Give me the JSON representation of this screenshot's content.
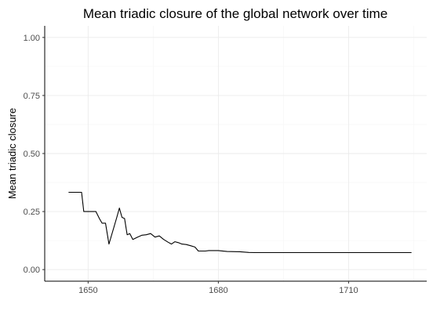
{
  "chart_data": {
    "type": "line",
    "title": "Mean triadic closure of the global network over time",
    "xlabel": "",
    "ylabel": "Mean triadic closure",
    "xlim": [
      1640,
      1728
    ],
    "ylim": [
      -0.05,
      1.05
    ],
    "x_ticks": [
      1650,
      1680,
      1710
    ],
    "y_ticks": [
      0.0,
      0.25,
      0.5,
      0.75,
      1.0
    ],
    "y_tick_labels": [
      "0.00",
      "0.25",
      "0.50",
      "0.75",
      "1.00"
    ],
    "grid": true,
    "legend": "none",
    "series": [
      {
        "color": "#000000",
        "points": [
          [
            1645.5,
            0.333
          ],
          [
            1648.5,
            0.333
          ],
          [
            1649.0,
            0.25
          ],
          [
            1651.0,
            0.25
          ],
          [
            1651.8,
            0.25
          ],
          [
            1652.6,
            0.22
          ],
          [
            1653.2,
            0.2
          ],
          [
            1654.0,
            0.2
          ],
          [
            1654.8,
            0.11
          ],
          [
            1656.6,
            0.225
          ],
          [
            1657.2,
            0.265
          ],
          [
            1657.8,
            0.225
          ],
          [
            1658.4,
            0.22
          ],
          [
            1659.0,
            0.15
          ],
          [
            1659.6,
            0.155
          ],
          [
            1660.3,
            0.13
          ],
          [
            1661.4,
            0.14
          ],
          [
            1662.4,
            0.148
          ],
          [
            1663.4,
            0.15
          ],
          [
            1664.4,
            0.155
          ],
          [
            1665.4,
            0.14
          ],
          [
            1666.4,
            0.145
          ],
          [
            1667.4,
            0.13
          ],
          [
            1668.4,
            0.118
          ],
          [
            1669.2,
            0.11
          ],
          [
            1670.0,
            0.12
          ],
          [
            1670.8,
            0.116
          ],
          [
            1671.6,
            0.11
          ],
          [
            1672.6,
            0.108
          ],
          [
            1673.6,
            0.103
          ],
          [
            1674.6,
            0.097
          ],
          [
            1675.4,
            0.08
          ],
          [
            1677.0,
            0.08
          ],
          [
            1677.8,
            0.082
          ],
          [
            1680.0,
            0.082
          ],
          [
            1682.0,
            0.078
          ],
          [
            1685.0,
            0.077
          ],
          [
            1687.0,
            0.074
          ],
          [
            1688.5,
            0.073
          ],
          [
            1700.0,
            0.073
          ],
          [
            1710.0,
            0.073
          ],
          [
            1724.5,
            0.073
          ]
        ]
      }
    ]
  }
}
